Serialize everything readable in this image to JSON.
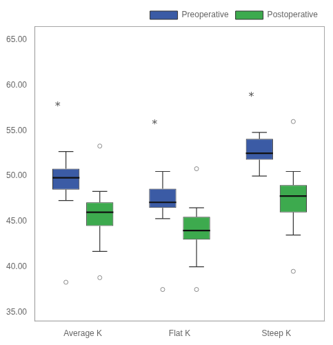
{
  "chart_data": {
    "type": "box",
    "categories": [
      "Average K",
      "Flat K",
      "Steep K"
    ],
    "series": [
      {
        "name": "Preoperative",
        "color": "#3B5BA5",
        "values": [
          {
            "q1": 48.5,
            "median": 49.8,
            "q3": 50.8,
            "whisker_low": 47.3,
            "whisker_high": 52.7,
            "outliers": [
              38.3
            ]
          },
          {
            "q1": 46.5,
            "median": 47.1,
            "q3": 48.6,
            "whisker_low": 45.3,
            "whisker_high": 50.5,
            "outliers": [
              37.5
            ]
          },
          {
            "q1": 51.8,
            "median": 52.5,
            "q3": 54.1,
            "whisker_low": 50.0,
            "whisker_high": 54.8,
            "outliers": []
          }
        ]
      },
      {
        "name": "Postoperative",
        "color": "#3DAA4E",
        "values": [
          {
            "q1": 44.5,
            "median": 46.0,
            "q3": 47.1,
            "whisker_low": 41.7,
            "whisker_high": 48.3,
            "outliers": [
              38.8,
              53.3
            ]
          },
          {
            "q1": 43.0,
            "median": 44.0,
            "q3": 45.5,
            "whisker_low": 40.0,
            "whisker_high": 46.5,
            "outliers": [
              37.5,
              50.8
            ]
          },
          {
            "q1": 46.0,
            "median": 47.8,
            "q3": 49.0,
            "whisker_low": 43.5,
            "whisker_high": 50.5,
            "outliers": [
              39.5,
              56.0
            ]
          }
        ]
      }
    ],
    "annotations": [
      {
        "text": "*",
        "category": "Average K",
        "series": "Preoperative",
        "y": 57.5
      },
      {
        "text": "*",
        "category": "Flat K",
        "series": "Preoperative",
        "y": 55.5
      },
      {
        "text": "*",
        "category": "Steep K",
        "series": "Preoperative",
        "y": 58.5
      }
    ],
    "ylim": [
      34.0,
      66.5
    ],
    "yticks": [
      {
        "value": 35.0,
        "label": "35.00"
      },
      {
        "value": 40.0,
        "label": "40.00"
      },
      {
        "value": 45.0,
        "label": "45.00"
      },
      {
        "value": 50.0,
        "label": "50.00"
      },
      {
        "value": 55.0,
        "label": "55.00"
      },
      {
        "value": 60.0,
        "label": "60.00"
      },
      {
        "value": 65.0,
        "label": "65.00"
      }
    ],
    "grid": false,
    "legend": "upper right"
  }
}
